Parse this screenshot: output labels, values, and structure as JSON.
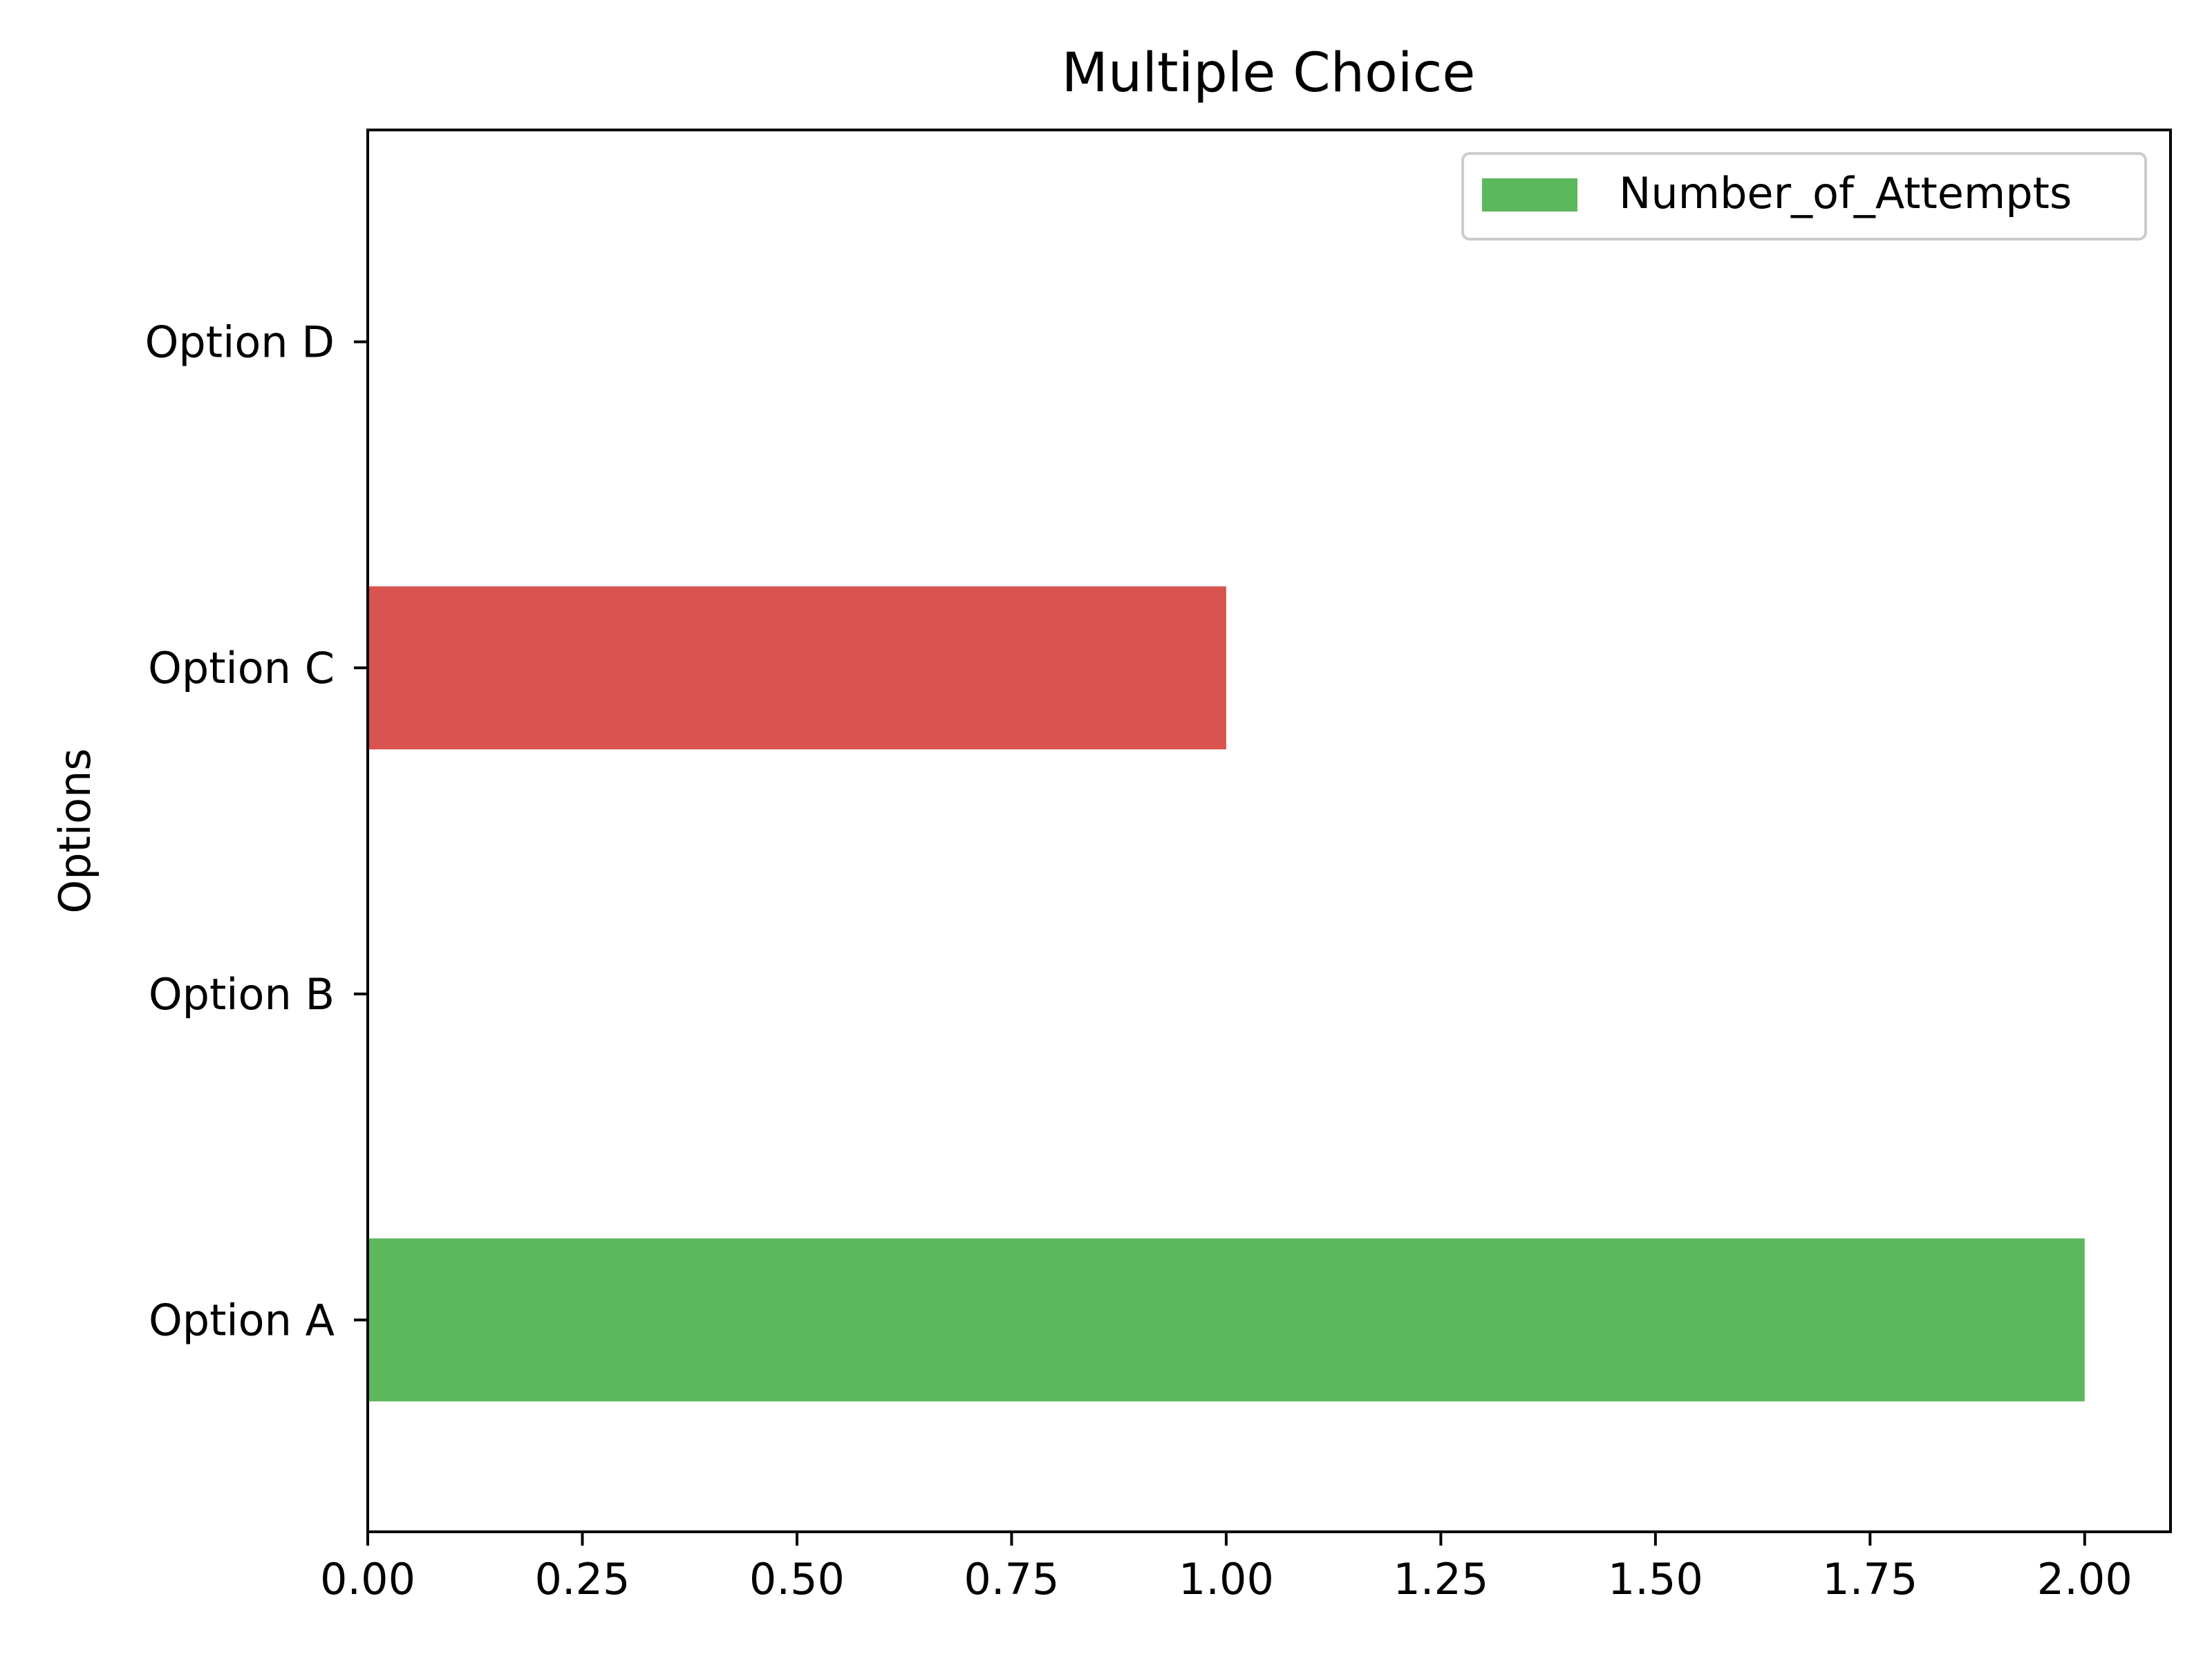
{
  "chart_data": {
    "type": "bar",
    "orientation": "horizontal",
    "title": "Multiple Choice",
    "xlabel": "",
    "ylabel": "Options",
    "categories": [
      "Option A",
      "Option B",
      "Option C",
      "Option D"
    ],
    "values": [
      2,
      0,
      1,
      0
    ],
    "bar_colors": [
      "#5cb85c",
      "#5cb85c",
      "#d9534f",
      "#5cb85c"
    ],
    "xlim": [
      0,
      2.1
    ],
    "xticks": [
      "0.00",
      "0.25",
      "0.50",
      "0.75",
      "1.00",
      "1.25",
      "1.50",
      "1.75",
      "2.00"
    ],
    "grid": false,
    "legend": {
      "placement": "top-right",
      "entries": [
        {
          "label": "Number_of_Attempts",
          "color": "#5cb85c"
        }
      ]
    }
  }
}
